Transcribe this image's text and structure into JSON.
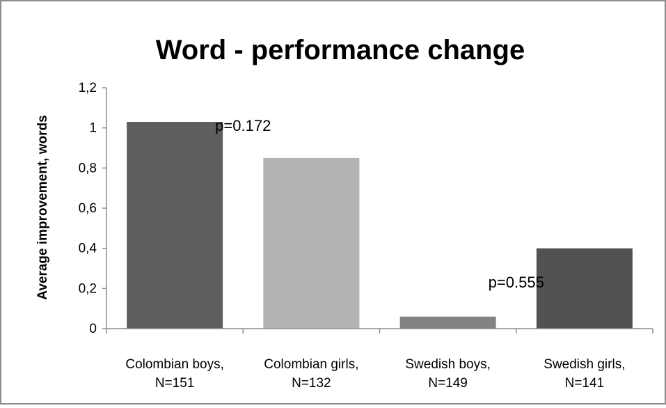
{
  "chart_data": {
    "type": "bar",
    "title": "Word - performance change",
    "ylabel": "Average improvement, words",
    "xlabel": "",
    "ylim": [
      0,
      1.2
    ],
    "y_ticks": [
      "0",
      "0,2",
      "0,4",
      "0,6",
      "0,8",
      "1",
      "1,2"
    ],
    "y_tick_values": [
      0,
      0.2,
      0.4,
      0.6,
      0.8,
      1.0,
      1.2
    ],
    "categories": [
      [
        "Colombian boys,",
        "N=151"
      ],
      [
        "Colombian girls,",
        "N=132"
      ],
      [
        "Swedish boys,",
        "N=149"
      ],
      [
        "Swedish girls,",
        "N=141"
      ]
    ],
    "values": [
      1.03,
      0.85,
      0.06,
      0.4
    ],
    "bar_colors": [
      "#5f5f5f",
      "#b3b3b3",
      "#838383",
      "#525252"
    ],
    "annotations": [
      {
        "text": "p=0.172",
        "x_between": [
          0,
          1
        ],
        "y": 1.03
      },
      {
        "text": "p=0.555",
        "x_between": [
          2,
          3
        ],
        "y": 0.25
      }
    ],
    "grid": false,
    "legend": "none"
  }
}
